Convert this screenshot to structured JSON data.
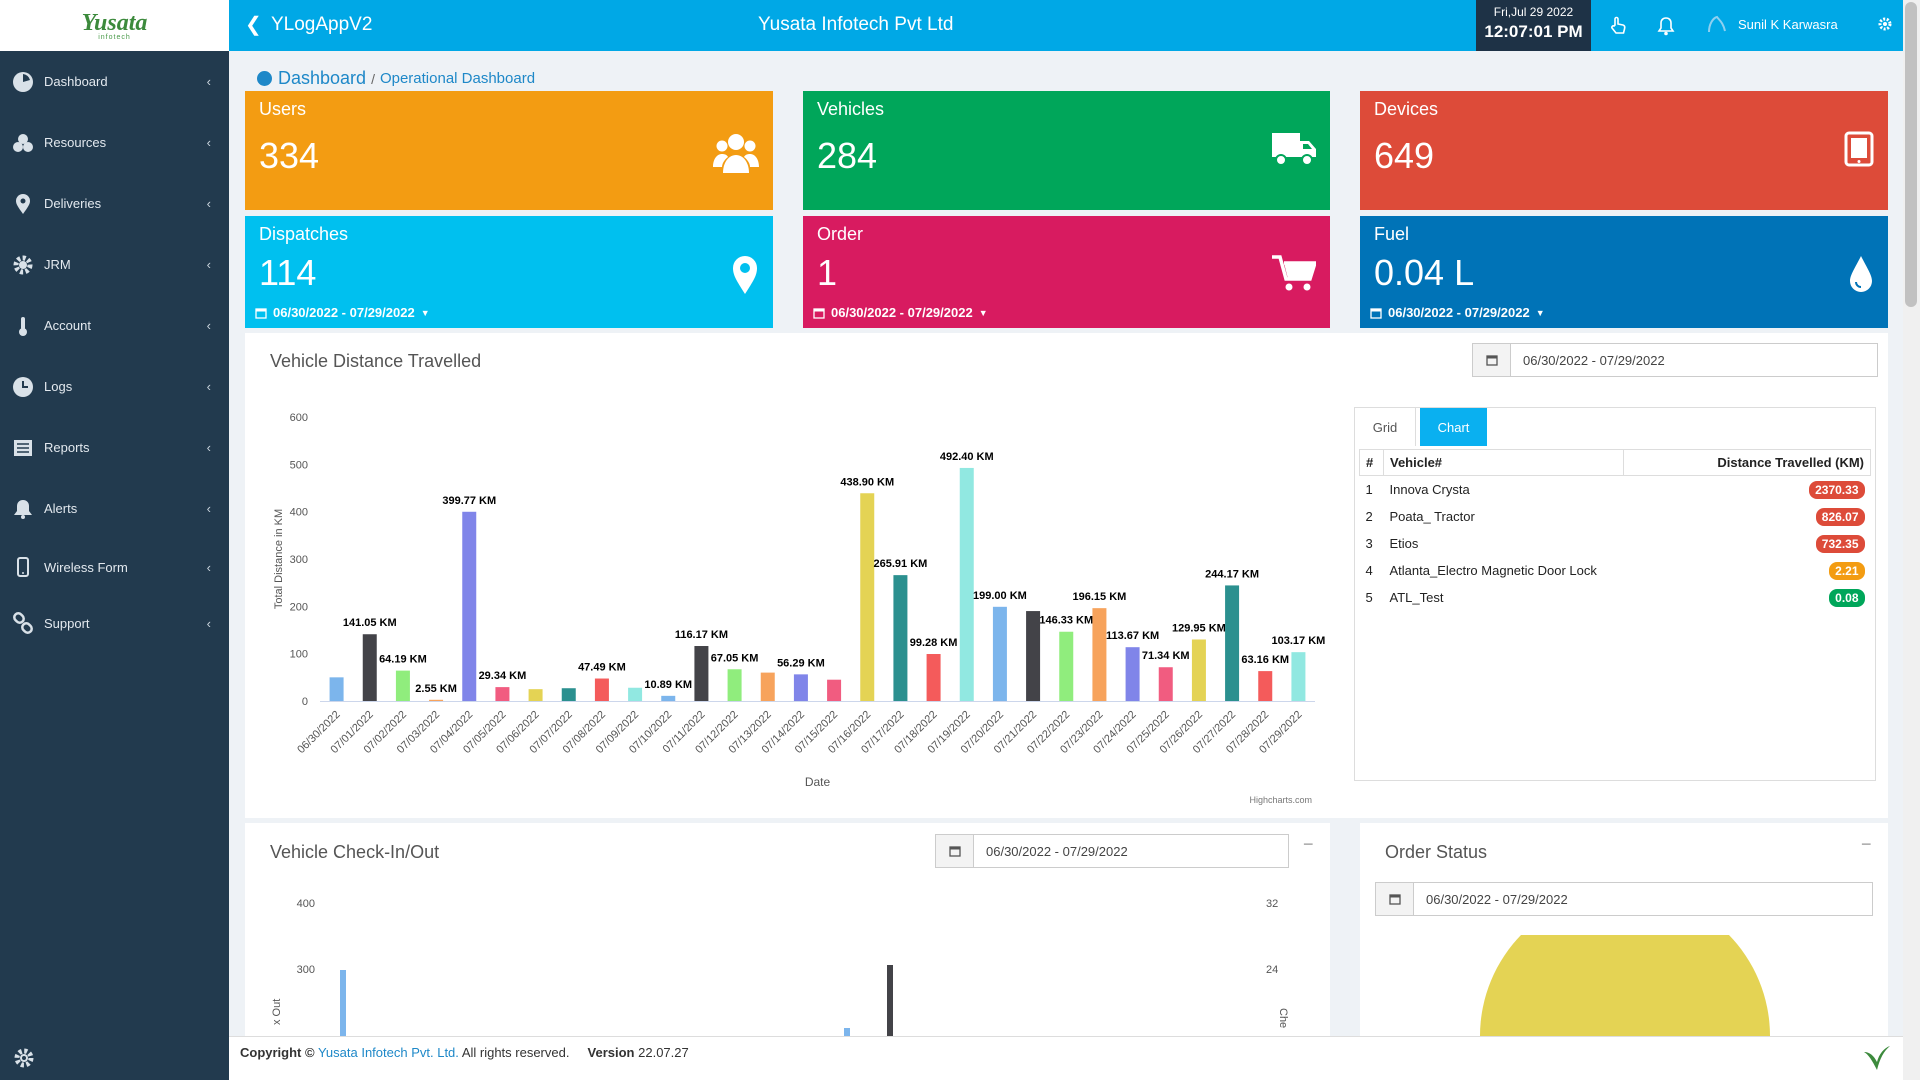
{
  "logo": {
    "text": "Yusata",
    "sub": "infotech"
  },
  "sidebar": {
    "items": [
      {
        "label": "Dashboard",
        "icon": "dashboard-icon"
      },
      {
        "label": "Resources",
        "icon": "resources-icon"
      },
      {
        "label": "Deliveries",
        "icon": "location-icon"
      },
      {
        "label": "JRM",
        "icon": "settings-icon"
      },
      {
        "label": "Account",
        "icon": "thermometer-icon"
      },
      {
        "label": "Logs",
        "icon": "clock-icon"
      },
      {
        "label": "Reports",
        "icon": "report-icon"
      },
      {
        "label": "Alerts",
        "icon": "bell-icon"
      },
      {
        "label": "Wireless Form",
        "icon": "mobile-icon"
      },
      {
        "label": "Support",
        "icon": "link-icon"
      }
    ]
  },
  "topbar": {
    "app_name": "YLogAppV2",
    "company": "Yusata Infotech Pvt Ltd",
    "date": "Fri,Jul 29 2022",
    "time": "12:07:01 PM",
    "user": "Sunil K Karwasra"
  },
  "breadcrumb": {
    "main": "Dashboard",
    "sub": "Operational Dashboard"
  },
  "tiles": [
    {
      "label": "Users",
      "value": "334",
      "color": "#f39c12",
      "icon": "users-icon"
    },
    {
      "label": "Vehicles",
      "value": "284",
      "color": "#00a65a",
      "icon": "truck-icon"
    },
    {
      "label": "Devices",
      "value": "649",
      "color": "#dd4b39",
      "icon": "tablet-icon"
    },
    {
      "label": "Dispatches",
      "value": "114",
      "color": "#00c0ef",
      "icon": "map-marker-icon",
      "date": "06/30/2022 - 07/29/2022"
    },
    {
      "label": "Order",
      "value": "1",
      "color": "#d81b60",
      "icon": "cart-icon",
      "date": "06/30/2022 - 07/29/2022"
    },
    {
      "label": "Fuel",
      "value": "0.04 L",
      "color": "#0073b7",
      "icon": "drop-icon",
      "date": "06/30/2022 - 07/29/2022"
    }
  ],
  "distance_panel": {
    "title": "Vehicle Distance Travelled",
    "date_range": "06/30/2022 - 07/29/2022",
    "tabs": {
      "grid": "Grid",
      "chart": "Chart"
    },
    "table": {
      "headers": [
        "#",
        "Vehicle#",
        "Distance Travelled (KM)"
      ],
      "rows": [
        {
          "n": "1",
          "vehicle": "Innova Crysta",
          "distance": "2370.33",
          "color": "#dd4b39"
        },
        {
          "n": "2",
          "vehicle": "Poata_ Tractor",
          "distance": "826.07",
          "color": "#dd4b39"
        },
        {
          "n": "3",
          "vehicle": "Etios",
          "distance": "732.35",
          "color": "#dd4b39"
        },
        {
          "n": "4",
          "vehicle": "Atlanta_Electro Magnetic Door Lock",
          "distance": "2.21",
          "color": "#f39c12"
        },
        {
          "n": "5",
          "vehicle": "ATL_Test",
          "distance": "0.08",
          "color": "#00a65a"
        }
      ]
    },
    "credit": "Highcharts.com"
  },
  "checkin_panel": {
    "title": "Vehicle Check-In/Out",
    "date_range": "06/30/2022 - 07/29/2022",
    "y_left_ticks": [
      "400",
      "300"
    ],
    "y_right_ticks": [
      "32",
      "24"
    ],
    "y_left_label": "x Out",
    "y_right_label": "Che"
  },
  "order_panel": {
    "title": "Order Status",
    "date_range": "06/30/2022 - 07/29/2022"
  },
  "footer": {
    "copy": "Copyright ©",
    "company": "Yusata Infotech Pvt. Ltd.",
    "rights": "All rights reserved.",
    "version_label": "Version",
    "version": "22.07.27"
  },
  "chart_data": [
    {
      "type": "bar",
      "title": "",
      "xlabel": "Date",
      "ylabel": "Total Distance in KM",
      "ylim": [
        0,
        600
      ],
      "yticks": [
        0,
        100,
        200,
        300,
        400,
        500,
        600
      ],
      "categories": [
        "06/30/2022",
        "07/01/2022",
        "07/02/2022",
        "07/03/2022",
        "07/04/2022",
        "07/05/2022",
        "07/06/2022",
        "07/07/2022",
        "07/08/2022",
        "07/09/2022",
        "07/10/2022",
        "07/11/2022",
        "07/12/2022",
        "07/13/2022",
        "07/14/2022",
        "07/15/2022",
        "07/16/2022",
        "07/17/2022",
        "07/18/2022",
        "07/19/2022",
        "07/20/2022",
        "07/21/2022",
        "07/22/2022",
        "07/23/2022",
        "07/24/2022",
        "07/25/2022",
        "07/26/2022",
        "07/27/2022",
        "07/28/2022",
        "07/29/2022"
      ],
      "values": [
        50,
        141.05,
        64.19,
        2.55,
        399.77,
        29.34,
        25,
        27,
        47.49,
        28,
        10.89,
        116.17,
        67.05,
        60,
        56.29,
        45,
        438.9,
        265.91,
        99.28,
        492.4,
        199.0,
        190,
        146.33,
        196.15,
        113.67,
        71.34,
        129.95,
        244.17,
        63.16,
        103.17
      ],
      "labels": [
        "",
        "141.05 KM",
        "64.19 KM",
        "2.55 KM",
        "399.77 KM",
        "29.34 KM",
        "",
        "",
        "47.49 KM",
        "",
        "10.89 KM",
        "116.17 KM",
        "67.05 KM",
        "",
        "56.29 KM",
        "",
        "438.90 KM",
        "265.91 KM",
        "99.28 KM",
        "492.40 KM",
        "199.00 KM",
        "",
        "146.33 KM",
        "196.15 KM",
        "113.67 KM",
        "71.34 KM",
        "129.95 KM",
        "244.17 KM",
        "63.16 KM",
        "103.17 KM"
      ],
      "colors": [
        "#7cb5ec",
        "#434348",
        "#90ed7d",
        "#f7a35c",
        "#8085e9",
        "#f15c80",
        "#e4d354",
        "#2b908f",
        "#f45b5b",
        "#91e8e1"
      ]
    }
  ]
}
